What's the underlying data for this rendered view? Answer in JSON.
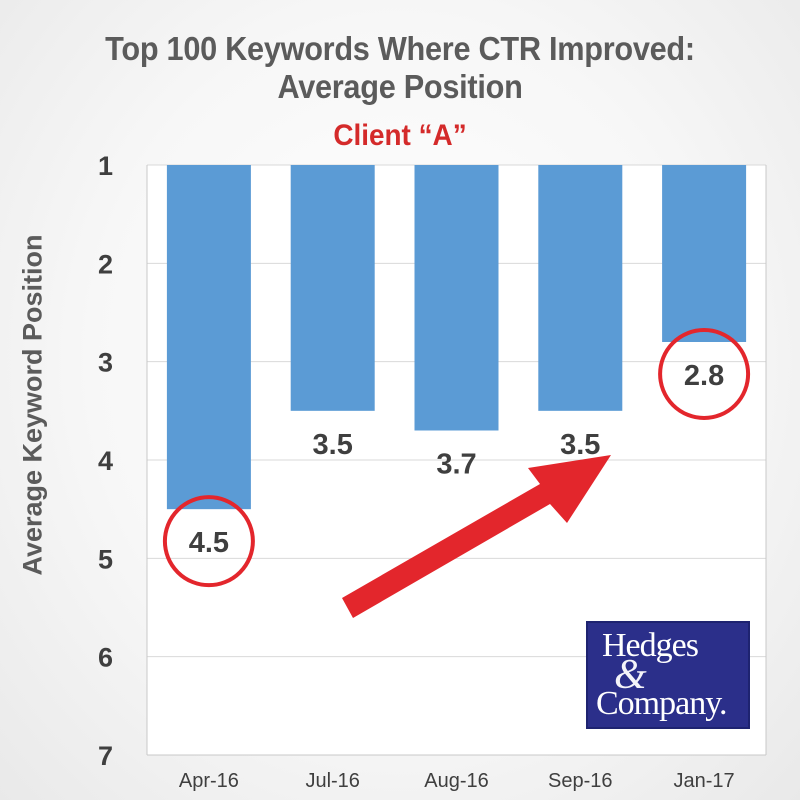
{
  "header": {
    "title_line1": "Top 100 Keywords Where CTR Improved:",
    "title_line2": "Average Position",
    "subtitle": "Client “A”"
  },
  "logo": {
    "line1": "Hedges",
    "ampersand": "&",
    "line2": "Company."
  },
  "colors": {
    "bar": "#5b9bd5",
    "grid": "#d9d9d9",
    "highlight": "#e3262c",
    "text": "#3f3f3f",
    "subtitle": "#d42a2a"
  },
  "chart_data": {
    "type": "bar",
    "title": "Top 100 Keywords Where CTR Improved: Average Position",
    "subtitle": "Client “A”",
    "xlabel": "",
    "ylabel": "Average Keyword Position",
    "categories": [
      "Apr-16",
      "Jul-16",
      "Aug-16",
      "Sep-16",
      "Jan-17"
    ],
    "values": [
      4.5,
      3.5,
      3.7,
      3.5,
      2.8
    ],
    "data_labels": [
      "4.5",
      "3.5",
      "3.7",
      "3.5",
      "2.8"
    ],
    "y_axis_reversed": true,
    "ylim": [
      1,
      7
    ],
    "yticks": [
      "1",
      "2",
      "3",
      "4",
      "5",
      "6",
      "7"
    ],
    "grid": true,
    "legend": "none",
    "annotations": {
      "circled_categories": [
        "Apr-16",
        "Jan-17"
      ],
      "arrow": "red upward arrow from Apr-16 to Sep-16 indicating improvement"
    }
  }
}
